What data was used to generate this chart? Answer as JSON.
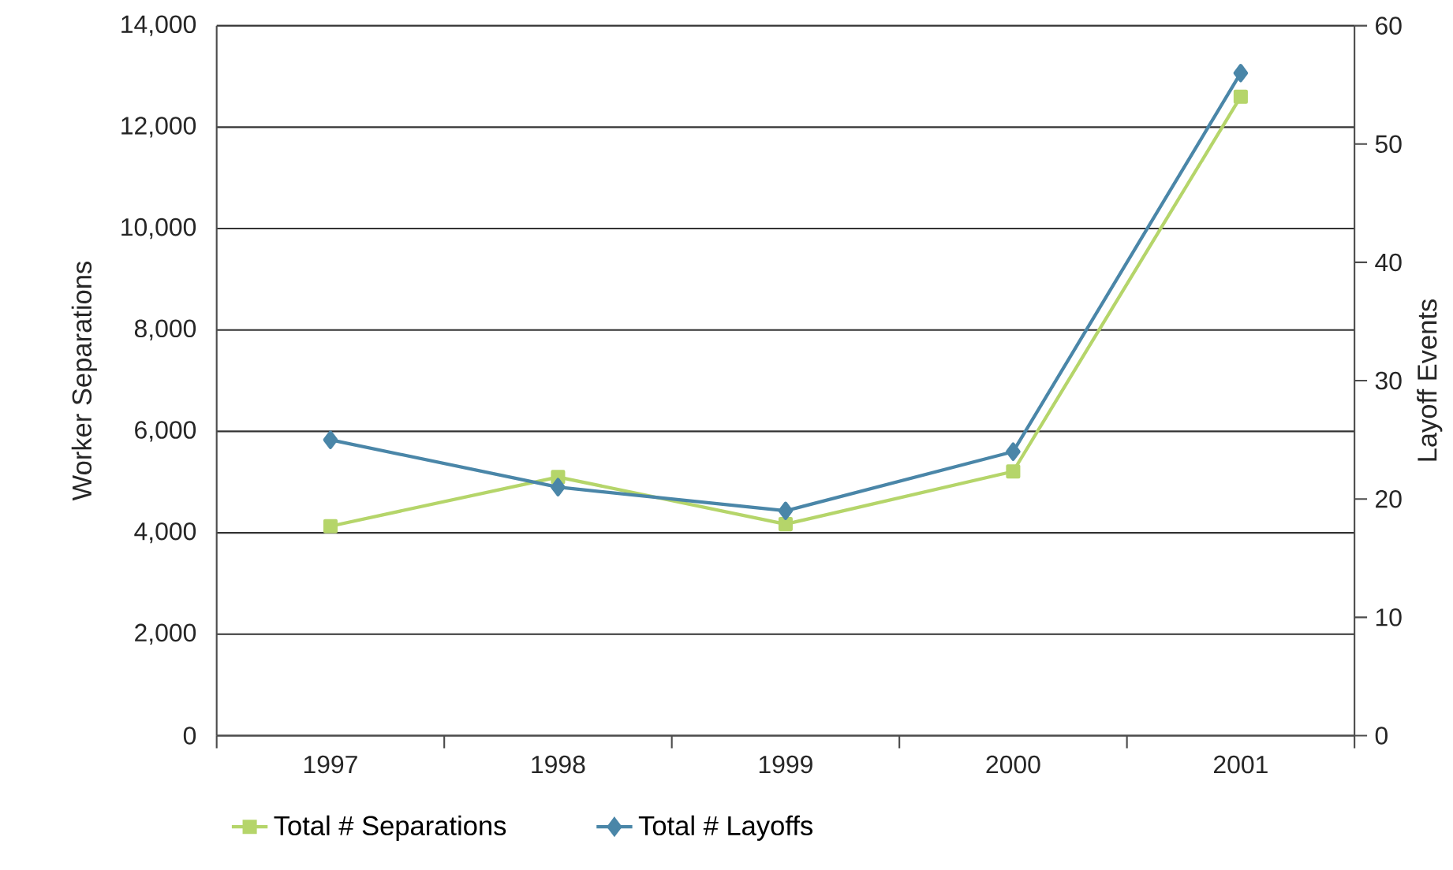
{
  "chart_data": {
    "type": "line",
    "ylabel": "Worker Separations",
    "y2label": "Layoff Events",
    "categories": [
      "1997",
      "1998",
      "1999",
      "2000",
      "2001"
    ],
    "series": [
      {
        "name": "Total # Separations",
        "color": "#b5d56a",
        "marker": "square",
        "values": [
          4130,
          5100,
          4170,
          5210,
          12600
        ]
      },
      {
        "name": "Total # Layoffs",
        "color": "#4a86a8",
        "marker": "diamond",
        "axis": "y2",
        "values": [
          25,
          21,
          19,
          24,
          56
        ]
      }
    ],
    "ylim": [
      0,
      14000
    ],
    "yticks": [
      {
        "value": 0,
        "label": "0"
      },
      {
        "value": 2000,
        "label": "2,000"
      },
      {
        "value": 4000,
        "label": "4,000"
      },
      {
        "value": 6000,
        "label": "6,000"
      },
      {
        "value": 8000,
        "label": "8,000"
      },
      {
        "value": 10000,
        "label": "10,000"
      },
      {
        "value": 12000,
        "label": "12,000"
      },
      {
        "value": 14000,
        "label": "14,000"
      }
    ],
    "y2lim": [
      0,
      60
    ],
    "y2ticks": [
      0,
      10,
      20,
      30,
      40,
      50,
      60
    ],
    "grid": "y",
    "legend": "bottom"
  }
}
